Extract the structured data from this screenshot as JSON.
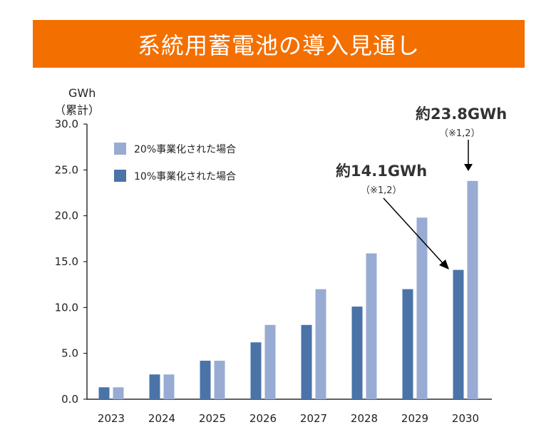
{
  "title": "系統用蓄電池の導入見通し",
  "colors": {
    "banner": "#f36f00",
    "series_20": "#98abd3",
    "series_10": "#4a73a8",
    "axis": "#000000"
  },
  "chart_data": {
    "type": "bar",
    "title": "系統用蓄電池の導入見通し",
    "ylabel_line1": "GWh",
    "ylabel_line2": "（累計）",
    "categories": [
      "2023",
      "2024",
      "2025",
      "2026",
      "2027",
      "2028",
      "2029",
      "2030"
    ],
    "ylim": [
      0,
      30
    ],
    "yticks": [
      "0.0",
      "5.0",
      "10.0",
      "15.0",
      "20.0",
      "25.0",
      "30.0"
    ],
    "series": [
      {
        "name": "10%事業化された場合",
        "values": [
          1.3,
          2.7,
          4.2,
          6.2,
          8.1,
          10.1,
          12.0,
          14.1
        ]
      },
      {
        "name": "20%事業化された場合",
        "values": [
          1.3,
          2.7,
          4.2,
          8.1,
          12.0,
          15.9,
          19.8,
          23.8
        ]
      }
    ],
    "legend": [
      "20%事業化された場合",
      "10%事業化された場合"
    ],
    "annotations": [
      {
        "main": "約14.1GWh",
        "sub": "（※1,2）",
        "target": "2030 10%"
      },
      {
        "main": "約23.8GWh",
        "sub": "（※1,2）",
        "target": "2030 20%"
      }
    ]
  }
}
